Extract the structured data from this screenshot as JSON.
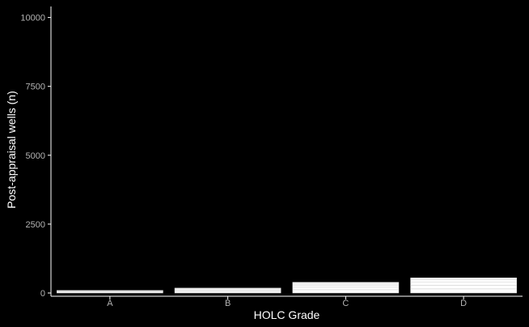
{
  "chart_data": {
    "type": "bar",
    "stacked": true,
    "xlabel": "HOLC Grade",
    "ylabel": "Post-appraisal wells (n)",
    "categories": [
      "A",
      "B",
      "C",
      "D"
    ],
    "segments": [
      [
        40,
        30,
        25
      ],
      [
        60,
        50,
        40,
        30
      ],
      [
        120,
        90,
        80,
        60,
        40
      ],
      [
        150,
        130,
        110,
        90,
        70
      ]
    ],
    "values": [
      95,
      180,
      390,
      550
    ],
    "ylim": [
      0,
      10400
    ],
    "yticks": [
      0,
      2500,
      5000,
      7500,
      10000
    ],
    "grid": false,
    "legend": "none",
    "colors": {
      "background": "#000000",
      "bar_fill": "#ffffff",
      "segment_line": "#cccccc",
      "axis_line": "#ffffff",
      "tick_label": "#b3b3b3",
      "axis_title": "#ffffff"
    }
  }
}
